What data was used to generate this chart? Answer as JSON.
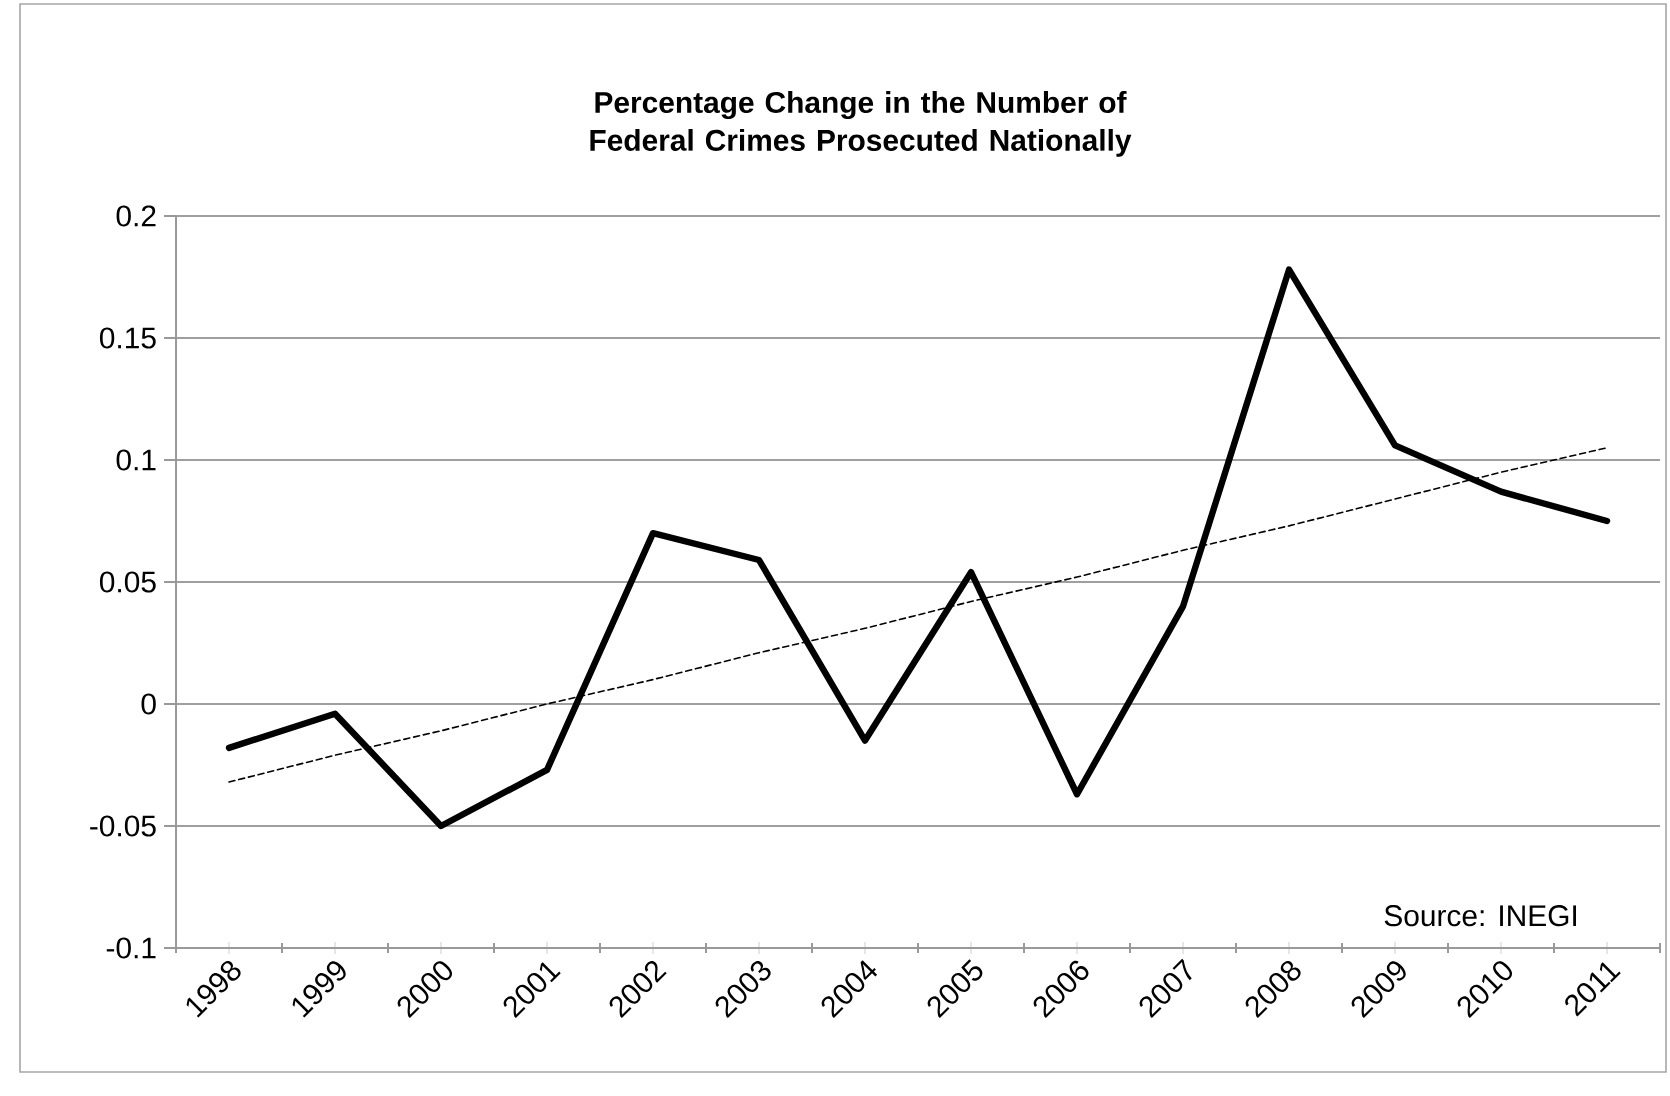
{
  "chart_data": {
    "type": "line",
    "title": "Percentage Change in the Number of Federal Crimes Prosecuted Nationally",
    "categories": [
      "1998",
      "1999",
      "2000",
      "2001",
      "2002",
      "2003",
      "2004",
      "2005",
      "2006",
      "2007",
      "2008",
      "2009",
      "2010",
      "2011"
    ],
    "series": [
      {
        "color": "#000000",
        "line_style": "solid",
        "values": [
          -0.018,
          -0.004,
          -0.05,
          -0.027,
          0.07,
          0.059,
          -0.015,
          0.054,
          -0.037,
          0.04,
          0.178,
          0.106,
          0.087,
          0.075
        ]
      },
      {
        "type": "line",
        "color": "#000000",
        "line_style": "dashed",
        "values": [
          -0.032,
          -0.021,
          -0.011,
          0.0,
          0.01,
          0.021,
          0.031,
          0.042,
          0.052,
          0.063,
          0.073,
          0.084,
          0.095,
          0.105
        ]
      }
    ],
    "ylim": [
      -0.1,
      0.2
    ],
    "yticks": [
      -0.1,
      -0.05,
      0,
      0.05,
      0.1,
      0.15,
      0.2
    ],
    "grid": "y",
    "annotations": [
      "Source: INEGI"
    ]
  }
}
